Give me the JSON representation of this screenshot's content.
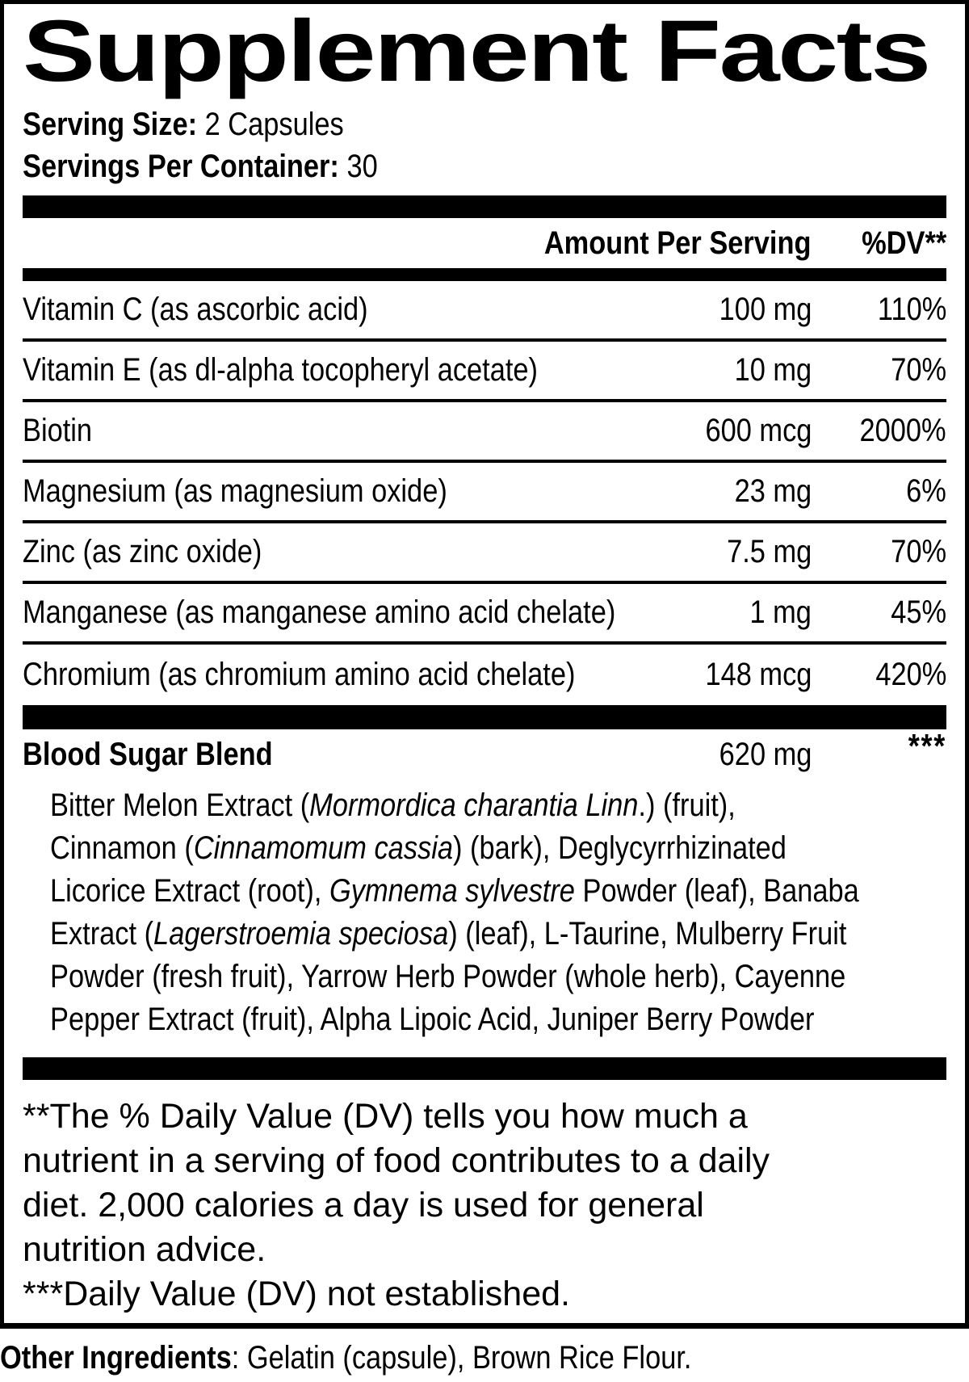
{
  "colors": {
    "ink": "#000000",
    "paper": "#ffffff"
  },
  "title": "Supplement Facts",
  "serving": {
    "size_label": "Serving Size:",
    "size_value": "2 Capsules",
    "container_label": "Servings Per Container:",
    "container_value": "30"
  },
  "table": {
    "amount_header": "Amount Per Serving",
    "dv_header": "%DV**",
    "rows": [
      {
        "name": "Vitamin C (as ascorbic acid)",
        "amount": "100 mg",
        "dv": "110%"
      },
      {
        "name": "Vitamin E (as dl-alpha tocopheryl acetate)",
        "amount": "10 mg",
        "dv": "70%"
      },
      {
        "name": "Biotin",
        "amount": "600 mcg",
        "dv": "2000%"
      },
      {
        "name": "Magnesium (as magnesium oxide)",
        "amount": "23 mg",
        "dv": "6%"
      },
      {
        "name": "Zinc (as zinc oxide)",
        "amount": "7.5 mg",
        "dv": "70%"
      },
      {
        "name": "Manganese (as manganese amino acid chelate)",
        "amount": "1 mg",
        "dv": "45%"
      },
      {
        "name": "Chromium (as chromium amino acid chelate)",
        "amount": "148 mcg",
        "dv": "420%"
      }
    ]
  },
  "blend": {
    "name": "Blood Sugar Blend",
    "amount": "620 mg",
    "dv": "***",
    "ingredient_lines": [
      [
        {
          "text": "Bitter Melon Extract (",
          "italic": false
        },
        {
          "text": "Mormordica charantia Linn",
          "italic": true
        },
        {
          "text": ".) (fruit),",
          "italic": false
        }
      ],
      [
        {
          "text": "Cinnamon (",
          "italic": false
        },
        {
          "text": "Cinnamomum cassia",
          "italic": true
        },
        {
          "text": ") (bark), Deglycyrrhizinated",
          "italic": false
        }
      ],
      [
        {
          "text": "Licorice Extract (root), ",
          "italic": false
        },
        {
          "text": "Gymnema sylvestre",
          "italic": true
        },
        {
          "text": " Powder (leaf), Banaba",
          "italic": false
        }
      ],
      [
        {
          "text": "Extract (",
          "italic": false
        },
        {
          "text": "Lagerstroemia speciosa",
          "italic": true
        },
        {
          "text": ") (leaf), L-Taurine, Mulberry Fruit",
          "italic": false
        }
      ],
      [
        {
          "text": "Powder (fresh fruit), Yarrow Herb Powder (whole herb), Cayenne",
          "italic": false
        }
      ],
      [
        {
          "text": "Pepper Extract (fruit), Alpha Lipoic Acid, Juniper Berry Powder",
          "italic": false
        }
      ]
    ]
  },
  "footnotes": {
    "lines": [
      "**The % Daily Value (DV) tells you how much a",
      "nutrient in a serving of food contributes to a daily",
      "diet. 2,000 calories a day is used for general",
      "nutrition advice.",
      "***Daily Value (DV) not established."
    ]
  },
  "other_ingredients": {
    "label": "Other Ingredients",
    "text": ": Gelatin (capsule), Brown Rice Flour."
  }
}
